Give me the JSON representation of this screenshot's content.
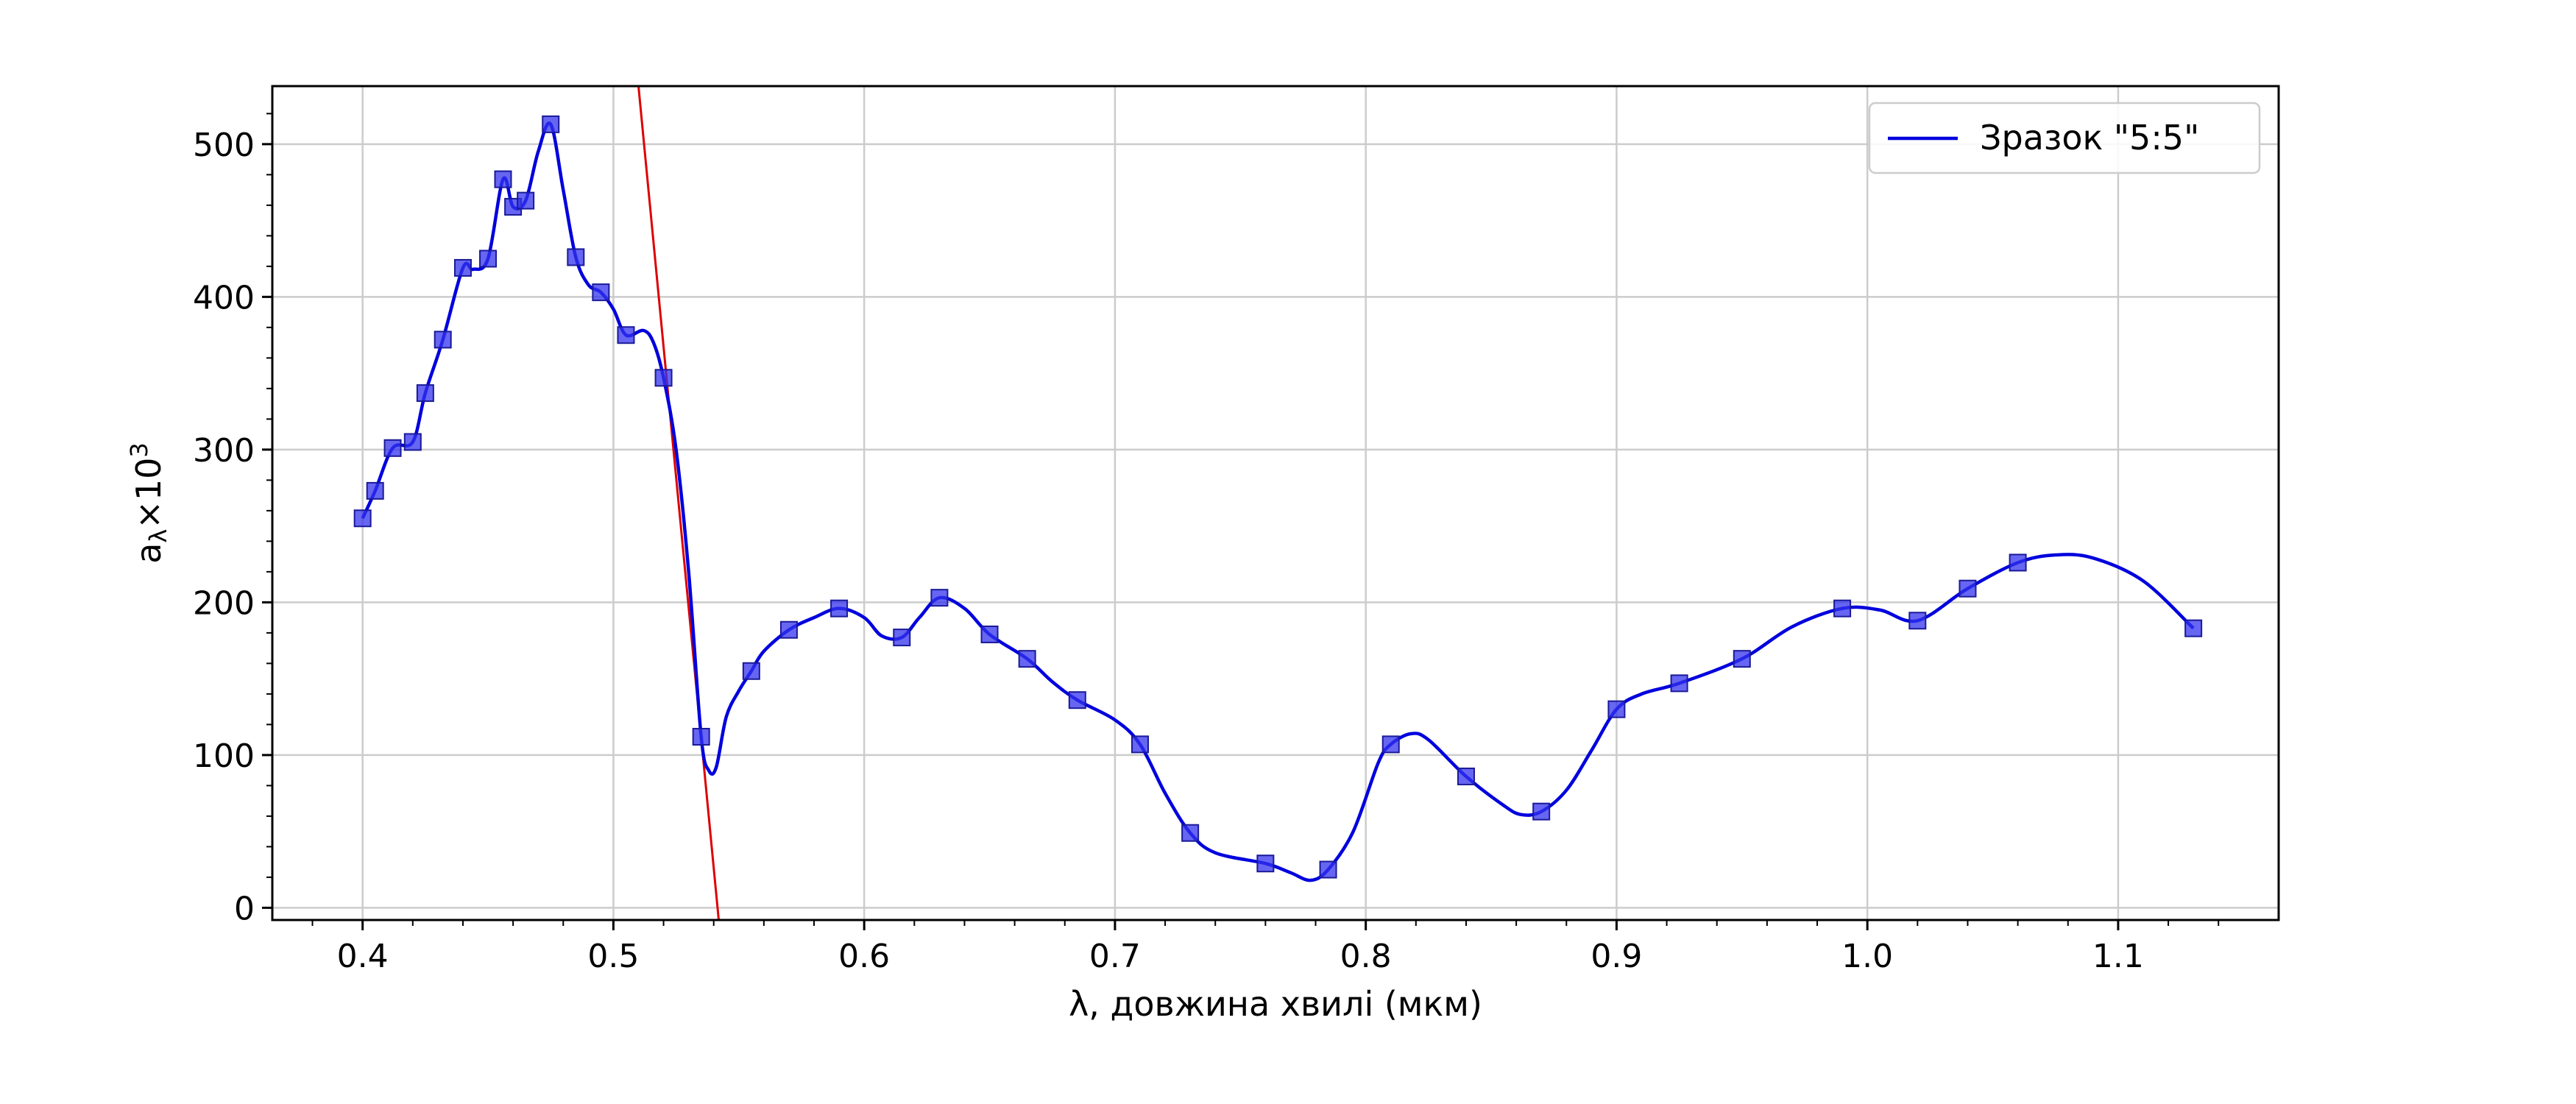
{
  "chart_data": {
    "type": "line",
    "title": "",
    "xlabel": "λ, довжина хвилі (мкм)",
    "ylabel_main": "a",
    "ylabel_sub": "λ",
    "ylabel_rest": "×10",
    "ylabel_sup": "3",
    "xlim": [
      0.364,
      1.164
    ],
    "ylim": [
      -8,
      538
    ],
    "x_ticks": [
      0.4,
      0.5,
      0.6,
      0.7,
      0.8,
      0.9,
      1.0,
      1.1
    ],
    "x_tick_labels": [
      "0.4",
      "0.5",
      "0.6",
      "0.7",
      "0.8",
      "0.9",
      "1.0",
      "1.1"
    ],
    "y_ticks": [
      0,
      100,
      200,
      300,
      400,
      500
    ],
    "y_tick_labels": [
      "0",
      "100",
      "200",
      "300",
      "400",
      "500"
    ],
    "grid": true,
    "legend": {
      "position": "top-right",
      "label": "Зразок \"5:5\""
    },
    "series": [
      {
        "name": "Зразок \"5:5\"",
        "color": "#0000dd",
        "marker": "square",
        "marker_color": "#3333ee",
        "x": [
          0.4,
          0.405,
          0.412,
          0.42,
          0.425,
          0.432,
          0.44,
          0.45,
          0.456,
          0.46,
          0.465,
          0.475,
          0.485,
          0.495,
          0.505,
          0.52,
          0.535,
          0.555,
          0.57,
          0.59,
          0.615,
          0.63,
          0.65,
          0.665,
          0.685,
          0.71,
          0.73,
          0.76,
          0.785,
          0.81,
          0.84,
          0.87,
          0.9,
          0.925,
          0.95,
          0.99,
          1.02,
          1.04,
          1.06,
          1.13
        ],
        "y": [
          255,
          273,
          301,
          305,
          337,
          372,
          419,
          425,
          477,
          459,
          463,
          513,
          426,
          403,
          375,
          347,
          112,
          155,
          182,
          196,
          177,
          203,
          179,
          163,
          136,
          107,
          49,
          29,
          25,
          107,
          86,
          63,
          130,
          147,
          163,
          196,
          188,
          209,
          226,
          183
        ]
      }
    ],
    "curve_x": [
      0.4,
      0.405,
      0.412,
      0.42,
      0.425,
      0.432,
      0.44,
      0.444,
      0.45,
      0.456,
      0.46,
      0.465,
      0.47,
      0.475,
      0.48,
      0.485,
      0.49,
      0.495,
      0.5,
      0.505,
      0.512,
      0.516,
      0.52,
      0.525,
      0.53,
      0.535,
      0.538,
      0.541,
      0.545,
      0.55,
      0.555,
      0.56,
      0.57,
      0.58,
      0.59,
      0.6,
      0.607,
      0.615,
      0.622,
      0.63,
      0.64,
      0.65,
      0.665,
      0.675,
      0.685,
      0.7,
      0.71,
      0.72,
      0.73,
      0.74,
      0.76,
      0.77,
      0.778,
      0.785,
      0.795,
      0.805,
      0.81,
      0.818,
      0.825,
      0.84,
      0.855,
      0.862,
      0.87,
      0.88,
      0.89,
      0.9,
      0.91,
      0.925,
      0.95,
      0.97,
      0.99,
      1.005,
      1.02,
      1.04,
      1.06,
      1.075,
      1.09,
      1.11,
      1.13
    ],
    "curve_y": [
      255,
      273,
      301,
      305,
      337,
      372,
      419,
      418,
      425,
      477,
      459,
      463,
      495,
      513,
      470,
      426,
      408,
      403,
      392,
      375,
      378,
      370,
      347,
      300,
      220,
      112,
      90,
      92,
      125,
      142,
      155,
      168,
      182,
      190,
      196,
      190,
      178,
      177,
      190,
      203,
      196,
      179,
      163,
      148,
      136,
      123,
      107,
      75,
      49,
      36,
      29,
      23,
      18,
      25,
      50,
      95,
      107,
      114,
      110,
      86,
      67,
      61,
      63,
      77,
      103,
      130,
      140,
      147,
      163,
      184,
      196,
      195,
      188,
      209,
      226,
      231,
      229,
      214,
      183
    ],
    "annotations": [
      {
        "type": "tangent-line",
        "color": "#dd0000",
        "x": [
          0.51,
          0.542
        ],
        "y": [
          538,
          -8
        ]
      }
    ]
  }
}
